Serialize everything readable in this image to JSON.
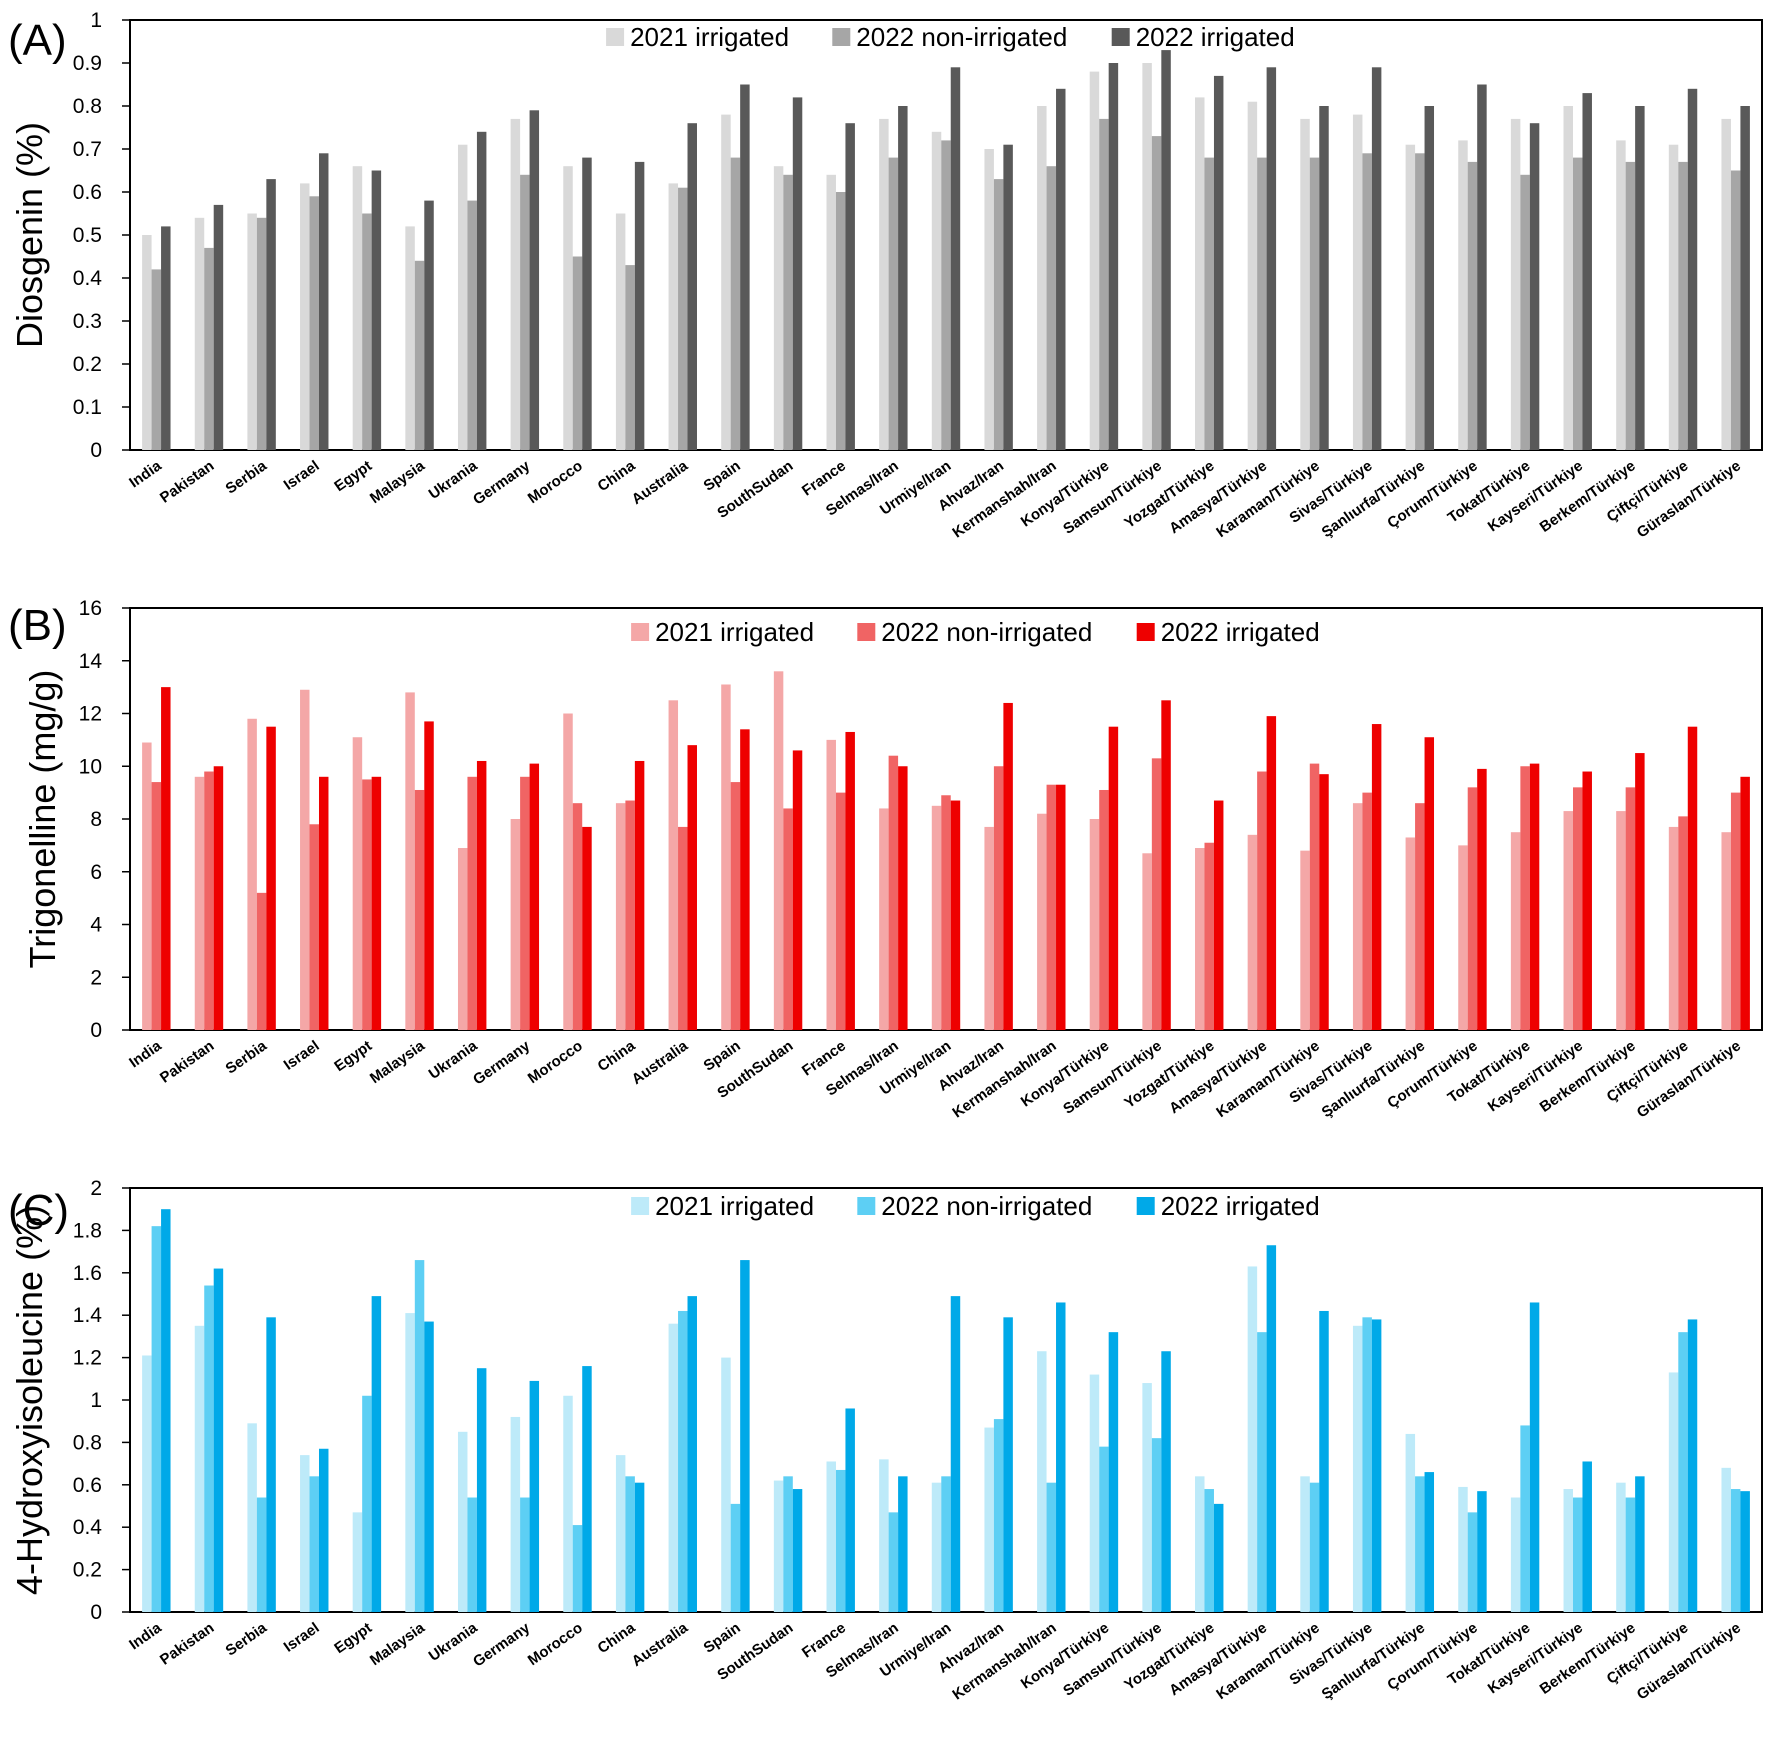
{
  "chart_data": [
    {
      "type": "bar",
      "panel_label": "(A)",
      "ylabel": "Diosgenin (%)",
      "ylim": [
        0,
        1
      ],
      "yticks": [
        "0",
        "0.1",
        "0.2",
        "0.3",
        "0.4",
        "0.5",
        "0.6",
        "0.7",
        "0.8",
        "0.9",
        "1"
      ],
      "legend_placement": "top-center",
      "categories": [
        "India",
        "Pakistan",
        "Serbia",
        "Israel",
        "Egypt",
        "Malaysia",
        "Ukrania",
        "Germany",
        "Morocco",
        "China",
        "Australia",
        "Spain",
        "SouthSudan",
        "France",
        "Selmas/Iran",
        "Urmiye/Iran",
        "Ahvaz/Iran",
        "Kermanshah/Iran",
        "Konya/Türkiye",
        "Samsun/Türkiye",
        "Yozgat/Türkiye",
        "Amasya/Türkiye",
        "Karaman/Türkiye",
        "Sivas/Türkiye",
        "Şanlıurfa/Türkiye",
        "Çorum/Türkiye",
        "Tokat/Türkiye",
        "Kayseri/Türkiye",
        "Berkem/Türkiye",
        "Çiftçi/Türkiye",
        "Güraslan/Türkiye"
      ],
      "series": [
        {
          "name": "2021 irrigated",
          "color": "#d9d9d9",
          "values": [
            0.5,
            0.54,
            0.55,
            0.62,
            0.66,
            0.52,
            0.71,
            0.77,
            0.66,
            0.55,
            0.62,
            0.78,
            0.66,
            0.64,
            0.77,
            0.74,
            0.7,
            0.8,
            0.88,
            0.9,
            0.82,
            0.81,
            0.77,
            0.78,
            0.71,
            0.72,
            0.77,
            0.8,
            0.72,
            0.71,
            0.77
          ]
        },
        {
          "name": "2022 non-irrigated",
          "color": "#a6a6a6",
          "values": [
            0.42,
            0.47,
            0.54,
            0.59,
            0.55,
            0.44,
            0.58,
            0.64,
            0.45,
            0.43,
            0.61,
            0.68,
            0.64,
            0.6,
            0.68,
            0.72,
            0.63,
            0.66,
            0.77,
            0.73,
            0.68,
            0.68,
            0.68,
            0.69,
            0.69,
            0.67,
            0.64,
            0.68,
            0.67,
            0.67,
            0.65
          ]
        },
        {
          "name": "2022 irrigated",
          "color": "#595959",
          "values": [
            0.52,
            0.57,
            0.63,
            0.69,
            0.65,
            0.58,
            0.74,
            0.79,
            0.68,
            0.67,
            0.76,
            0.85,
            0.82,
            0.76,
            0.8,
            0.89,
            0.71,
            0.84,
            0.9,
            0.93,
            0.87,
            0.89,
            0.8,
            0.89,
            0.8,
            0.85,
            0.76,
            0.83,
            0.8,
            0.84,
            0.8
          ]
        }
      ]
    },
    {
      "type": "bar",
      "panel_label": "(B)",
      "ylabel": "Trigonelline (mg/g)",
      "ylim": [
        0,
        16
      ],
      "yticks": [
        "0",
        "2",
        "4",
        "6",
        "8",
        "10",
        "12",
        "14",
        "16"
      ],
      "legend_placement": "top-center",
      "categories": [
        "India",
        "Pakistan",
        "Serbia",
        "Israel",
        "Egypt",
        "Malaysia",
        "Ukrania",
        "Germany",
        "Morocco",
        "China",
        "Australia",
        "Spain",
        "SouthSudan",
        "France",
        "Selmas/Iran",
        "Urmiye/Iran",
        "Ahvaz/Iran",
        "Kermanshah/Iran",
        "Konya/Türkiye",
        "Samsun/Türkiye",
        "Yozgat/Türkiye",
        "Amasya/Türkiye",
        "Karaman/Türkiye",
        "Sivas/Türkiye",
        "Şanlıurfa/Türkiye",
        "Çorum/Türkiye",
        "Tokat/Türkiye",
        "Kayseri/Türkiye",
        "Berkem/Türkiye",
        "Çiftçi/Türkiye",
        "Güraslan/Türkiye"
      ],
      "series": [
        {
          "name": "2021 irrigated",
          "color": "#f4a7a7",
          "values": [
            10.9,
            9.6,
            11.8,
            12.9,
            11.1,
            12.8,
            6.9,
            8.0,
            12.0,
            8.6,
            12.5,
            13.1,
            13.6,
            11.0,
            8.4,
            8.5,
            7.7,
            8.2,
            8.0,
            6.7,
            6.9,
            7.4,
            6.8,
            8.6,
            7.3,
            7.0,
            7.5,
            8.3,
            8.3,
            7.7,
            7.5
          ]
        },
        {
          "name": "2022 non-irrigated",
          "color": "#f06464",
          "values": [
            9.4,
            9.8,
            5.2,
            7.8,
            9.5,
            9.1,
            9.6,
            9.6,
            8.6,
            8.7,
            7.7,
            9.4,
            8.4,
            9.0,
            10.4,
            8.9,
            10.0,
            9.3,
            9.1,
            10.3,
            7.1,
            9.8,
            10.1,
            9.0,
            8.6,
            9.2,
            10.0,
            9.2,
            9.2,
            8.1,
            9.0
          ]
        },
        {
          "name": "2022 irrigated",
          "color": "#ee0000",
          "values": [
            13.0,
            10.0,
            11.5,
            9.6,
            9.6,
            11.7,
            10.2,
            10.1,
            7.7,
            10.2,
            10.8,
            11.4,
            10.6,
            11.3,
            10.0,
            8.7,
            12.4,
            9.3,
            11.5,
            12.5,
            8.7,
            11.9,
            9.7,
            11.6,
            11.1,
            9.9,
            10.1,
            9.8,
            10.5,
            11.5,
            9.6
          ]
        }
      ]
    },
    {
      "type": "bar",
      "panel_label": "(C)",
      "ylabel": "4-Hydroxyisoleucine (%)",
      "ylim": [
        0,
        2
      ],
      "yticks": [
        "0",
        "0.2",
        "0.4",
        "0.6",
        "0.8",
        "1",
        "1.2",
        "1.4",
        "1.6",
        "1.8",
        "2"
      ],
      "legend_placement": "top-center",
      "categories": [
        "India",
        "Pakistan",
        "Serbia",
        "Israel",
        "Egypt",
        "Malaysia",
        "Ukrania",
        "Germany",
        "Morocco",
        "China",
        "Australia",
        "Spain",
        "SouthSudan",
        "France",
        "Selmas/Iran",
        "Urmiye/Iran",
        "Ahvaz/Iran",
        "Kermanshah/Iran",
        "Konya/Türkiye",
        "Samsun/Türkiye",
        "Yozgat/Türkiye",
        "Amasya/Türkiye",
        "Karaman/Türkiye",
        "Sivas/Türkiye",
        "Şanlıurfa/Türkiye",
        "Çorum/Türkiye",
        "Tokat/Türkiye",
        "Kayseri/Türkiye",
        "Berkem/Türkiye",
        "Çiftçi/Türkiye",
        "Güraslan/Türkiye"
      ],
      "series": [
        {
          "name": "2021 irrigated",
          "color": "#bdeaf9",
          "values": [
            1.21,
            1.35,
            0.89,
            0.74,
            0.47,
            1.41,
            0.85,
            0.92,
            1.02,
            0.74,
            1.36,
            1.2,
            0.62,
            0.71,
            0.72,
            0.61,
            0.87,
            1.23,
            1.12,
            1.08,
            0.64,
            1.63,
            0.64,
            1.35,
            0.84,
            0.59,
            0.54,
            0.58,
            0.61,
            1.13,
            0.68
          ]
        },
        {
          "name": "2022 non-irrigated",
          "color": "#5dcff4",
          "values": [
            1.82,
            1.54,
            0.54,
            0.64,
            1.02,
            1.66,
            0.54,
            0.54,
            0.41,
            0.64,
            1.42,
            0.51,
            0.64,
            0.67,
            0.47,
            0.64,
            0.91,
            0.61,
            0.78,
            0.82,
            0.58,
            1.32,
            0.61,
            1.39,
            0.64,
            0.47,
            0.88,
            0.54,
            0.54,
            1.32,
            0.58
          ]
        },
        {
          "name": "2022 irrigated",
          "color": "#00a9e8",
          "values": [
            1.9,
            1.62,
            1.39,
            0.77,
            1.49,
            1.37,
            1.15,
            1.09,
            1.16,
            0.61,
            1.49,
            1.66,
            0.58,
            0.96,
            0.64,
            1.49,
            1.39,
            1.46,
            1.32,
            1.23,
            0.51,
            1.73,
            1.42,
            1.38,
            0.66,
            0.57,
            1.46,
            0.71,
            0.64,
            1.38,
            0.57
          ]
        }
      ]
    }
  ]
}
